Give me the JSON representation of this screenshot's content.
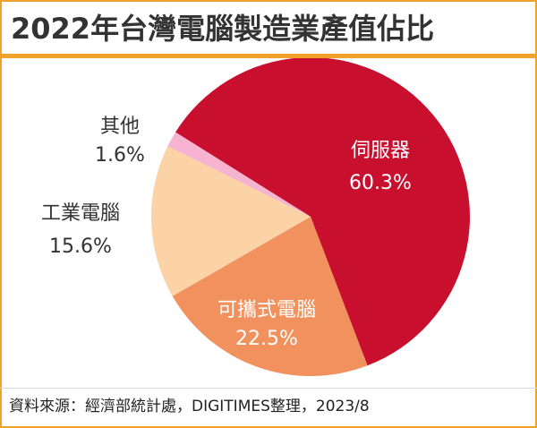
{
  "chart_data": {
    "type": "pie",
    "title": "2022年台灣電腦製造業產值佔比",
    "unit": "%",
    "slices": [
      {
        "label": "伺服器",
        "value": 60.3,
        "value_label": "60.3%",
        "color": "#c8102e",
        "text_color": "#ffffff"
      },
      {
        "label": "可攜式電腦",
        "value": 22.5,
        "value_label": "22.5%",
        "color": "#f0915e",
        "text_color": "#ffffff"
      },
      {
        "label": "工業電腦",
        "value": 15.6,
        "value_label": "15.6%",
        "color": "#fbd3a6",
        "text_color": "#333333"
      },
      {
        "label": "其他",
        "value": 1.6,
        "value_label": "1.6%",
        "color": "#f6b4d0",
        "text_color": "#333333"
      }
    ]
  },
  "source": "資料來源：經濟部統計處，DIGITIMES整理，2023/8",
  "colors": {
    "accent": "#f2a12a"
  }
}
